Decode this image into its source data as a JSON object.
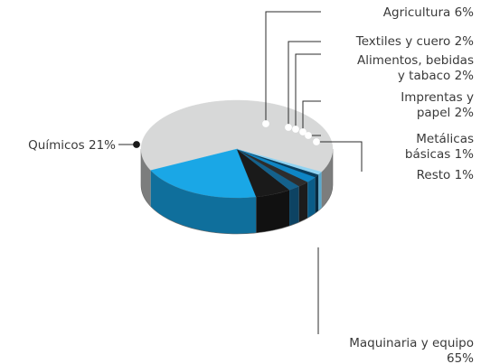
{
  "chart_data": {
    "type": "pie",
    "style": "3d",
    "slices": [
      {
        "label": "Maquinaria y equipo",
        "value": 65,
        "value_text": "65%",
        "color": "#d7d8d8",
        "side_color": "#7c7d7d"
      },
      {
        "label": "Químicos",
        "value": 21,
        "value_text": "21%",
        "color": "#1aa7e6",
        "side_color": "#0f6f9c"
      },
      {
        "label": "Agricultura",
        "value": 6,
        "value_text": "6%",
        "color": "#1a1a1a",
        "side_color": "#111111"
      },
      {
        "label": "Textiles y cuero",
        "value": 2,
        "value_text": "2%",
        "color": "#14618c",
        "side_color": "#0d4363"
      },
      {
        "label": "Alimentos, bebidas y tabaco",
        "value": 2,
        "value_text": "2%",
        "color": "#2d2d2d",
        "side_color": "#1c1c1c"
      },
      {
        "label": "Imprentas y papel",
        "value": 2,
        "value_text": "2%",
        "color": "#0e85c4",
        "side_color": "#0a5c88"
      },
      {
        "label": "Metálicas básicas",
        "value": 1,
        "value_text": "1%",
        "color": "#0a3d5c",
        "side_color": "#072a40"
      },
      {
        "label": "Resto",
        "value": 1,
        "value_text": "1%",
        "color": "#8fd3f2",
        "side_color": "#5aa9cc"
      }
    ]
  },
  "labels": [
    {
      "lines": [
        "Agricultura 6%"
      ]
    },
    {
      "lines": [
        "Textiles y cuero 2%"
      ]
    },
    {
      "lines": [
        "Alimentos, bebidas",
        "y tabaco 2%"
      ]
    },
    {
      "lines": [
        "Imprentas y",
        "papel 2%"
      ]
    },
    {
      "lines": [
        "Metálicas",
        "básicas 1%"
      ]
    },
    {
      "lines": [
        "Resto 1%"
      ]
    },
    {
      "lines": [
        "Químicos 21%"
      ]
    },
    {
      "lines": [
        "Maquinaria y equipo",
        "65%"
      ]
    }
  ]
}
